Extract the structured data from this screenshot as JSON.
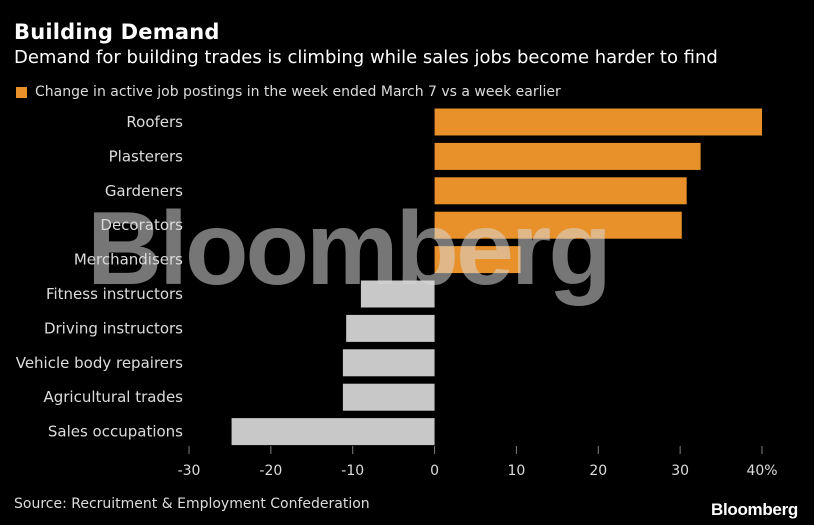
{
  "title": "Building Demand",
  "subtitle": "Demand for building trades is climbing while sales jobs become harder to find",
  "source": "Source: Recruitment & Employment Confederation",
  "brand": "Bloomberg",
  "watermark": "Bloomberg",
  "colors": {
    "positive": "#e8912a",
    "negative": "#c8c8c8",
    "background": "#000000",
    "tick": "#808080"
  },
  "chart_data": {
    "type": "bar",
    "orientation": "horizontal",
    "title": "Building Demand",
    "subtitle": "Demand for building trades is climbing while sales jobs become harder to find",
    "categories": [
      "Roofers",
      "Plasterers",
      "Gardeners",
      "Decorators",
      "Merchandisers",
      "Fitness instructors",
      "Driving instructors",
      "Vehicle body repairers",
      "Agricultural trades",
      "Sales occupations"
    ],
    "series": [
      {
        "name": "Change in active job postings in the week ended March 7 vs a week earlier",
        "values": [
          40,
          32.5,
          30.8,
          30.2,
          10.5,
          -9,
          -10.8,
          -11.2,
          -11.2,
          -24.8
        ]
      }
    ],
    "xlim": [
      -30,
      40
    ],
    "xticks": [
      -30,
      -20,
      -10,
      0,
      10,
      20,
      30,
      40
    ],
    "xtick_labels": [
      "-30",
      "-20",
      "-10",
      "0",
      "10",
      "20",
      "30",
      "40%"
    ],
    "legend_position": "top-left",
    "grid": false
  }
}
